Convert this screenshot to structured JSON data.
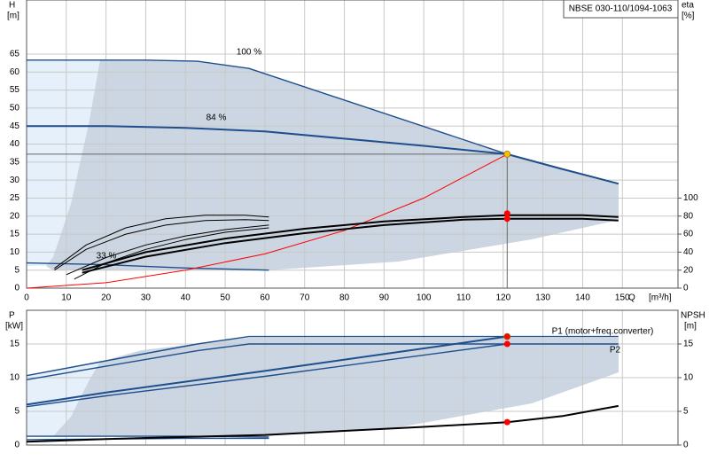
{
  "chart_data": [
    {
      "type": "line",
      "title": "NBSE 030-110/1094-1063",
      "y_label": "H",
      "y_unit": "[m]",
      "y2_label": "eta",
      "y2_unit": "[%]",
      "x_label": "Q",
      "x_unit": "[m³/h]",
      "xlim": [
        0,
        164
      ],
      "xticks": [
        0,
        10,
        20,
        30,
        40,
        50,
        60,
        70,
        80,
        90,
        100,
        110,
        120,
        130,
        140,
        150
      ],
      "ylim": [
        0,
        80
      ],
      "yticks": [
        0,
        5,
        10,
        15,
        20,
        25,
        30,
        35,
        40,
        45,
        50,
        55,
        60,
        65
      ],
      "y2lim": [
        0,
        320
      ],
      "y2ticks": [
        0,
        20,
        40,
        60,
        80,
        100
      ],
      "grid": true,
      "series": [
        {
          "name": "100 %",
          "color": "#1f4e8c",
          "width": 1.4,
          "x": [
            0,
            18,
            30,
            43,
            56,
            121,
            149
          ],
          "values": [
            63.3,
            63.3,
            63.3,
            63,
            61,
            37.2,
            29
          ]
        },
        {
          "name": "84 %",
          "color": "#1f4e8c",
          "width": 2,
          "x": [
            0,
            20,
            40,
            60,
            80,
            100,
            121
          ],
          "values": [
            45,
            45,
            44.5,
            43.5,
            41.5,
            39.5,
            37.2
          ]
        },
        {
          "name": "33 %",
          "color": "#1f4e8c",
          "width": 1.4,
          "x": [
            0,
            20,
            40,
            61
          ],
          "values": [
            7,
            6.5,
            5.6,
            5
          ]
        },
        {
          "color": "#1f4e8c",
          "width": 2,
          "x": [
            121,
            135,
            149
          ],
          "values": [
            37.2,
            33,
            29
          ]
        },
        {
          "color": "#ff0000",
          "width": 1,
          "x": [
            0,
            20,
            40,
            60,
            80,
            100,
            121
          ],
          "values": [
            0,
            1.5,
            5,
            9.5,
            16,
            25,
            37.2
          ]
        },
        {
          "color": "#000000",
          "width": 2,
          "axis": "y2",
          "x": [
            14,
            30,
            50,
            70,
            90,
            110,
            121,
            140,
            149
          ],
          "values": [
            20,
            40,
            55,
            66,
            74,
            79,
            81,
            81,
            79
          ]
        },
        {
          "color": "#000000",
          "width": 2,
          "axis": "y2",
          "x": [
            14,
            30,
            50,
            70,
            90,
            110,
            121,
            140,
            149
          ],
          "values": [
            17,
            35,
            50,
            61,
            70,
            76,
            77,
            77,
            75
          ]
        },
        {
          "color": "#000000",
          "width": 1,
          "axis": "y2",
          "x": [
            7,
            15,
            25,
            35,
            45,
            55,
            61
          ],
          "values": [
            22,
            48,
            67,
            77,
            81,
            81,
            79
          ]
        },
        {
          "color": "#000000",
          "width": 1,
          "axis": "y2",
          "x": [
            7,
            15,
            25,
            35,
            45,
            55,
            61
          ],
          "values": [
            20,
            43,
            60,
            70,
            75,
            76,
            75
          ]
        },
        {
          "color": "#000000",
          "width": 1,
          "axis": "y2",
          "x": [
            10,
            20,
            30,
            40,
            50,
            61
          ],
          "values": [
            15,
            34,
            48,
            58,
            65,
            70
          ]
        },
        {
          "color": "#000000",
          "width": 1,
          "axis": "y2",
          "x": [
            12,
            20,
            30,
            40,
            50,
            61
          ],
          "values": [
            10,
            28,
            43,
            54,
            62,
            67
          ]
        }
      ],
      "markers": [
        {
          "x": 121,
          "y": 37.2,
          "color": "#f2c200"
        },
        {
          "x": 121,
          "y": 83,
          "axis": "y2",
          "color": "#ff0000"
        },
        {
          "x": 121,
          "y": 77,
          "axis": "y2",
          "color": "#ff0000"
        }
      ]
    },
    {
      "type": "line",
      "y_label": "P",
      "y_unit": "[kW]",
      "y2_label": "NPSH",
      "y2_unit": "[m]",
      "xlim": [
        0,
        164
      ],
      "xticks": [
        0,
        10,
        20,
        30,
        40,
        50,
        60,
        70,
        80,
        90,
        100,
        110,
        120,
        130,
        140,
        150
      ],
      "xtick_labels": false,
      "ylim": [
        0,
        20
      ],
      "yticks": [
        0,
        5,
        10,
        15
      ],
      "y2lim": [
        0,
        20
      ],
      "y2ticks": [
        0,
        5,
        10,
        15
      ],
      "grid": true,
      "series": [
        {
          "name": "P1 (motor+freq.converter)",
          "color": "#1f4e8c",
          "width": 1.4,
          "x": [
            0,
            20,
            43,
            56,
            121,
            149
          ],
          "values": [
            10.3,
            12.5,
            15,
            16.1,
            16.1,
            16.1
          ]
        },
        {
          "name": "P2",
          "color": "#1f4e8c",
          "width": 1.4,
          "x": [
            0,
            20,
            43,
            56,
            121,
            149
          ],
          "values": [
            9.7,
            11.7,
            14,
            15,
            15,
            15
          ]
        },
        {
          "color": "#1f4e8c",
          "width": 2,
          "x": [
            0,
            20,
            60,
            121
          ],
          "values": [
            6,
            7.8,
            11,
            16.1
          ]
        },
        {
          "color": "#1f4e8c",
          "width": 1.4,
          "x": [
            0,
            20,
            60,
            121
          ],
          "values": [
            5.7,
            7.3,
            10.2,
            15
          ]
        },
        {
          "color": "#1f4e8c",
          "width": 1.4,
          "x": [
            0,
            20,
            40,
            61
          ],
          "values": [
            1.3,
            1.3,
            1.3,
            1.2
          ]
        },
        {
          "color": "#1f4e8c",
          "width": 1.4,
          "x": [
            0,
            20,
            40,
            61
          ],
          "values": [
            0.8,
            0.9,
            1,
            1
          ]
        },
        {
          "color": "#000000",
          "width": 2,
          "axis": "y2",
          "x": [
            0,
            20,
            40,
            60,
            80,
            100,
            121,
            135,
            149
          ],
          "values": [
            0.5,
            0.9,
            1.2,
            1.5,
            2.1,
            2.7,
            3.4,
            4.3,
            5.8
          ]
        }
      ],
      "markers": [
        {
          "x": 121,
          "y": 16.1,
          "color": "#ff0000"
        },
        {
          "x": 121,
          "y": 15,
          "color": "#ff0000"
        },
        {
          "x": 121,
          "y": 3.4,
          "axis": "y2",
          "color": "#ff0000"
        }
      ]
    }
  ]
}
